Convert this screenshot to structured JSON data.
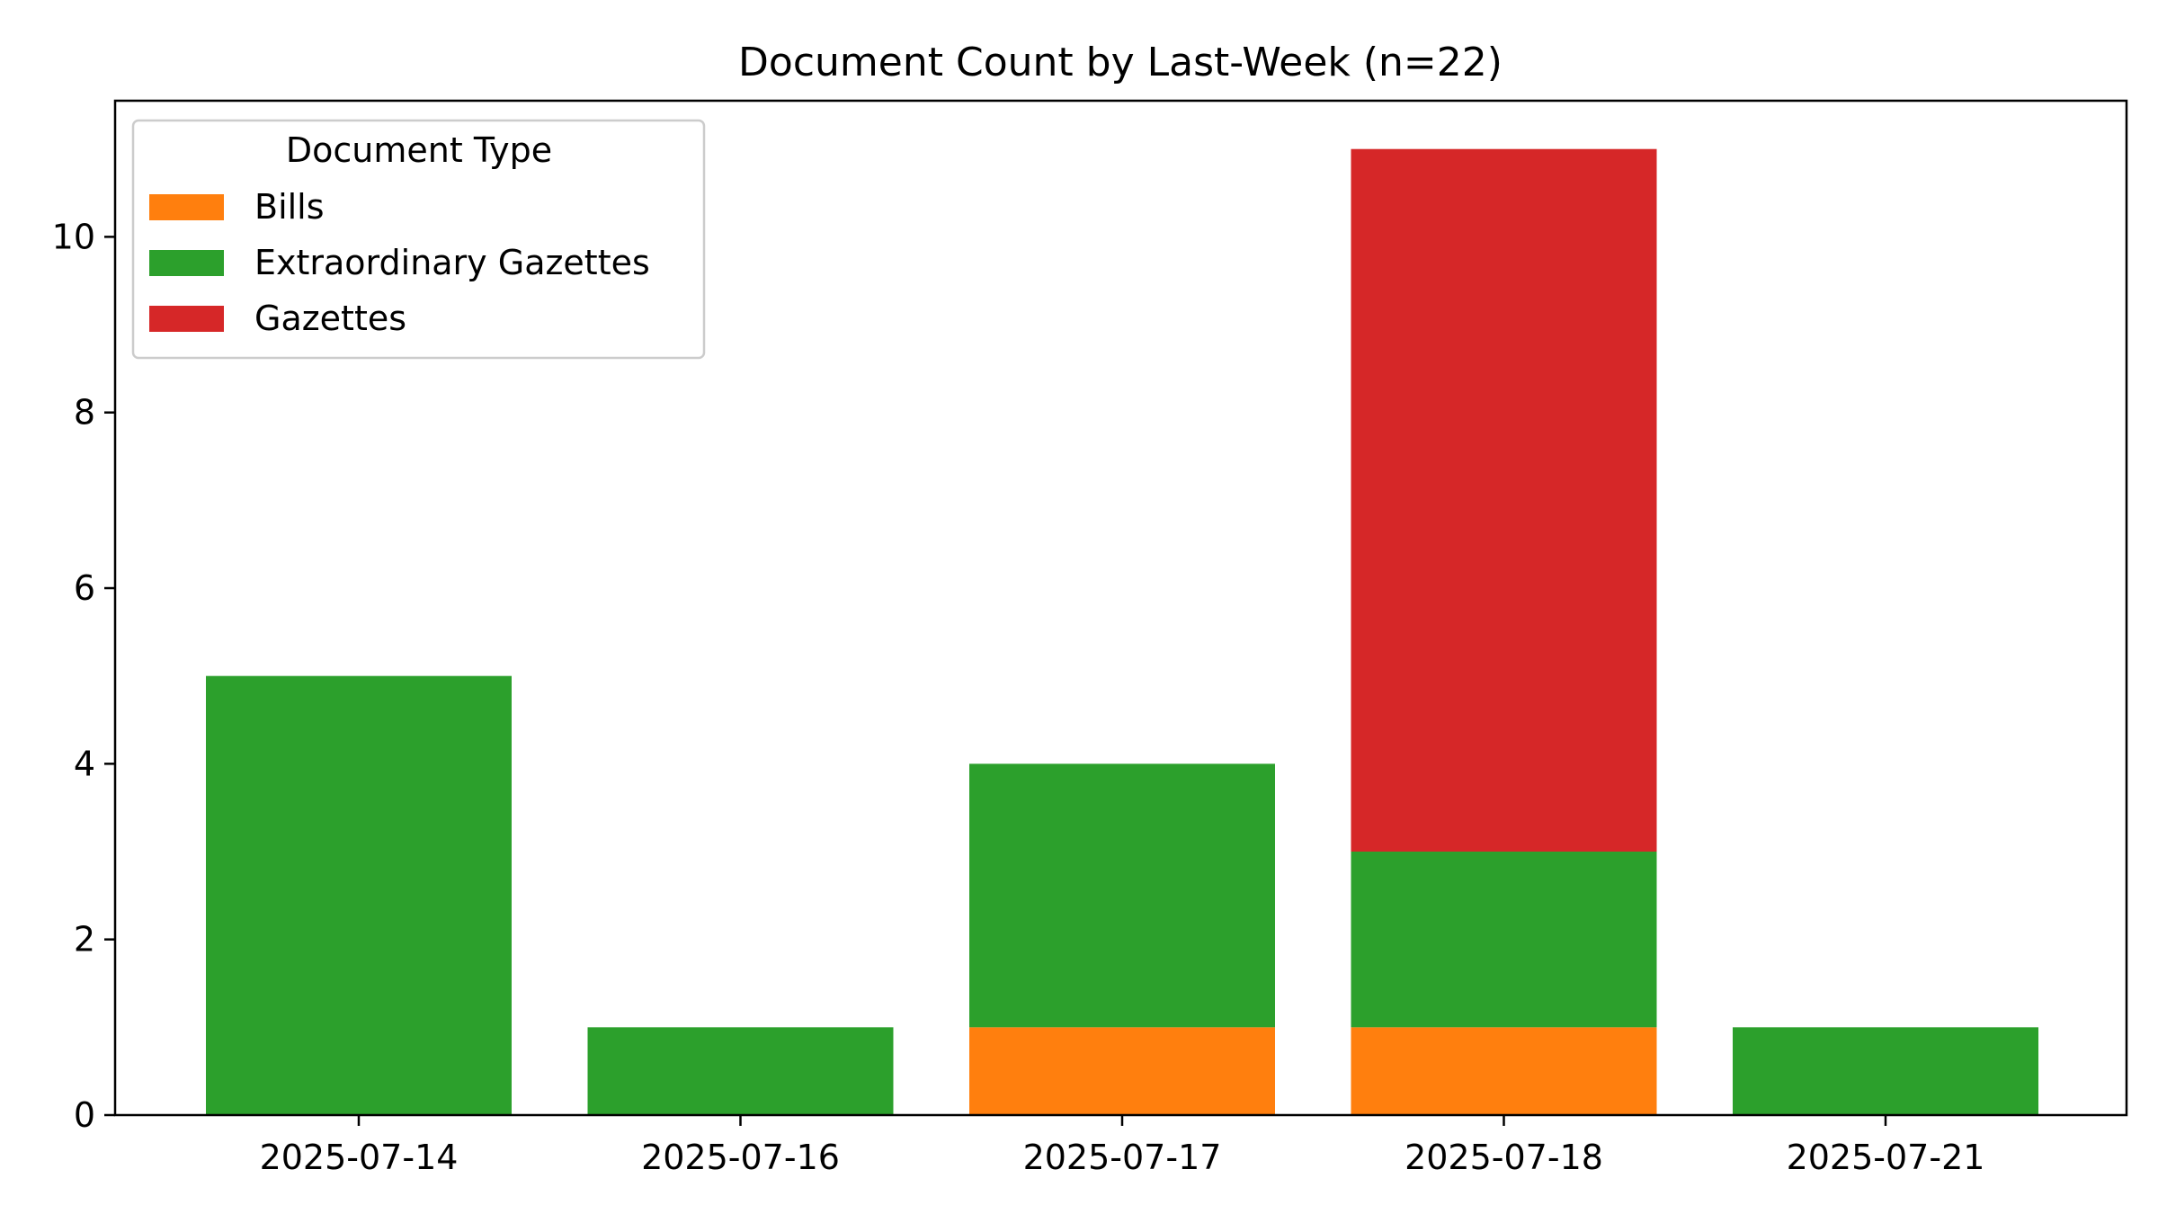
{
  "chart_data": {
    "type": "bar",
    "stacked": true,
    "title": "Document Count by Last-Week (n=22)",
    "xlabel": "",
    "ylabel": "",
    "categories": [
      "2025-07-14",
      "2025-07-16",
      "2025-07-17",
      "2025-07-18",
      "2025-07-21"
    ],
    "series": [
      {
        "name": "Bills",
        "color": "#ff7f0e",
        "values": [
          0,
          0,
          1,
          1,
          0
        ]
      },
      {
        "name": "Extraordinary Gazettes",
        "color": "#2ca02c",
        "values": [
          5,
          1,
          3,
          2,
          1
        ]
      },
      {
        "name": "Gazettes",
        "color": "#d62728",
        "values": [
          0,
          0,
          0,
          8,
          0
        ]
      }
    ],
    "ylim": [
      0,
      11.55
    ],
    "yticks": [
      0,
      2,
      4,
      6,
      8,
      10
    ],
    "grid": false,
    "legend": {
      "title": "Document Type",
      "placement": "top-left"
    }
  }
}
